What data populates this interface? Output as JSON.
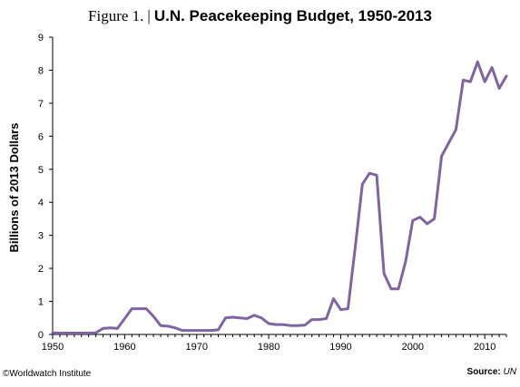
{
  "title": {
    "figure": "Figure 1.",
    "separator": "|",
    "text": "U.N. Peacekeeping Budget, 1950-2013"
  },
  "credit": "©Worldwatch Institute",
  "source": {
    "label": "Source:",
    "value": "UN"
  },
  "line_color": "#8064a2",
  "chart_data": {
    "type": "line",
    "title": "U.N. Peacekeeping Budget, 1950-2013",
    "xlabel": "",
    "ylabel": "Billions of 2013 Dollars",
    "xlim": [
      1950,
      2013
    ],
    "ylim": [
      0,
      9
    ],
    "xticks": [
      "1950",
      "1960",
      "1970",
      "1980",
      "1990",
      "2000",
      "2010"
    ],
    "yticks": [
      "0",
      "1",
      "2",
      "3",
      "4",
      "5",
      "6",
      "7",
      "8",
      "9"
    ],
    "grid": false,
    "legend": "none",
    "series": [
      {
        "x": [
          1950,
          1951,
          1952,
          1953,
          1954,
          1955,
          1956,
          1957,
          1958,
          1959,
          1960,
          1961,
          1962,
          1963,
          1964,
          1965,
          1966,
          1967,
          1968,
          1969,
          1970,
          1971,
          1972,
          1973,
          1974,
          1975,
          1976,
          1977,
          1978,
          1979,
          1980,
          1981,
          1982,
          1983,
          1984,
          1985,
          1986,
          1987,
          1988,
          1989,
          1990,
          1991,
          1992,
          1993,
          1994,
          1995,
          1996,
          1997,
          1998,
          1999,
          2000,
          2001,
          2002,
          2003,
          2004,
          2005,
          2006,
          2007,
          2008,
          2009,
          2010,
          2011,
          2012,
          2013
        ],
        "y": [
          0.05,
          0.04,
          0.04,
          0.04,
          0.04,
          0.04,
          0.05,
          0.18,
          0.2,
          0.18,
          0.48,
          0.78,
          0.78,
          0.78,
          0.55,
          0.27,
          0.25,
          0.2,
          0.12,
          0.12,
          0.12,
          0.12,
          0.12,
          0.14,
          0.5,
          0.52,
          0.5,
          0.48,
          0.58,
          0.5,
          0.33,
          0.3,
          0.3,
          0.27,
          0.27,
          0.28,
          0.45,
          0.45,
          0.48,
          1.08,
          0.75,
          0.78,
          2.6,
          4.55,
          4.88,
          4.82,
          1.85,
          1.38,
          1.38,
          2.2,
          3.45,
          3.55,
          3.35,
          3.5,
          5.4,
          5.8,
          6.2,
          7.7,
          7.65,
          8.25,
          7.65,
          8.08,
          7.45,
          7.82
        ]
      }
    ]
  }
}
